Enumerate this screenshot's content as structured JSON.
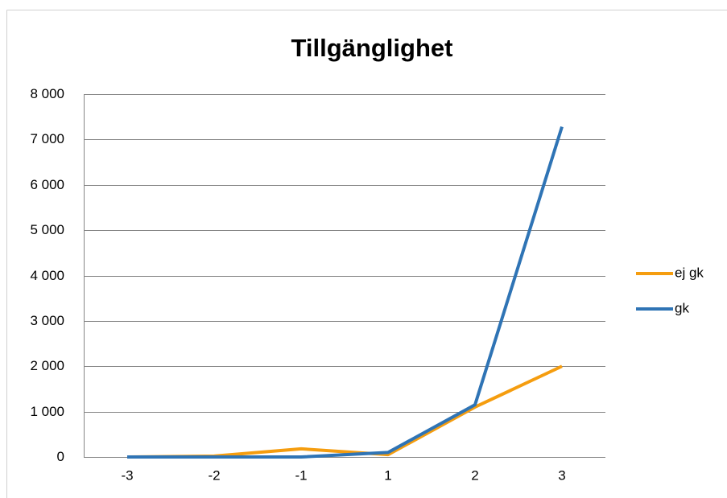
{
  "chart_data": {
    "type": "line",
    "title": "Tillgänglighet",
    "categories": [
      "-3",
      "-2",
      "-1",
      "1",
      "2",
      "3"
    ],
    "series": [
      {
        "name": "ej gk",
        "color": "#f59d0f",
        "values": [
          0,
          20,
          180,
          50,
          1100,
          2000
        ]
      },
      {
        "name": "gk",
        "color": "#2f74b5",
        "values": [
          0,
          0,
          0,
          100,
          1150,
          7280
        ]
      }
    ],
    "ylim": [
      0,
      8000
    ],
    "yticks": [
      0,
      {
        "value": 1000,
        "label": "1 000"
      },
      {
        "value": 2000,
        "label": "2 000"
      },
      {
        "value": 3000,
        "label": "3 000"
      },
      {
        "value": 4000,
        "label": "4 000"
      },
      {
        "value": 5000,
        "label": "5 000"
      },
      {
        "value": 6000,
        "label": "6 000"
      },
      {
        "value": 7000,
        "label": "7 000"
      },
      {
        "value": 8000,
        "label": "8 000"
      }
    ],
    "grid": true,
    "legend": "right"
  }
}
